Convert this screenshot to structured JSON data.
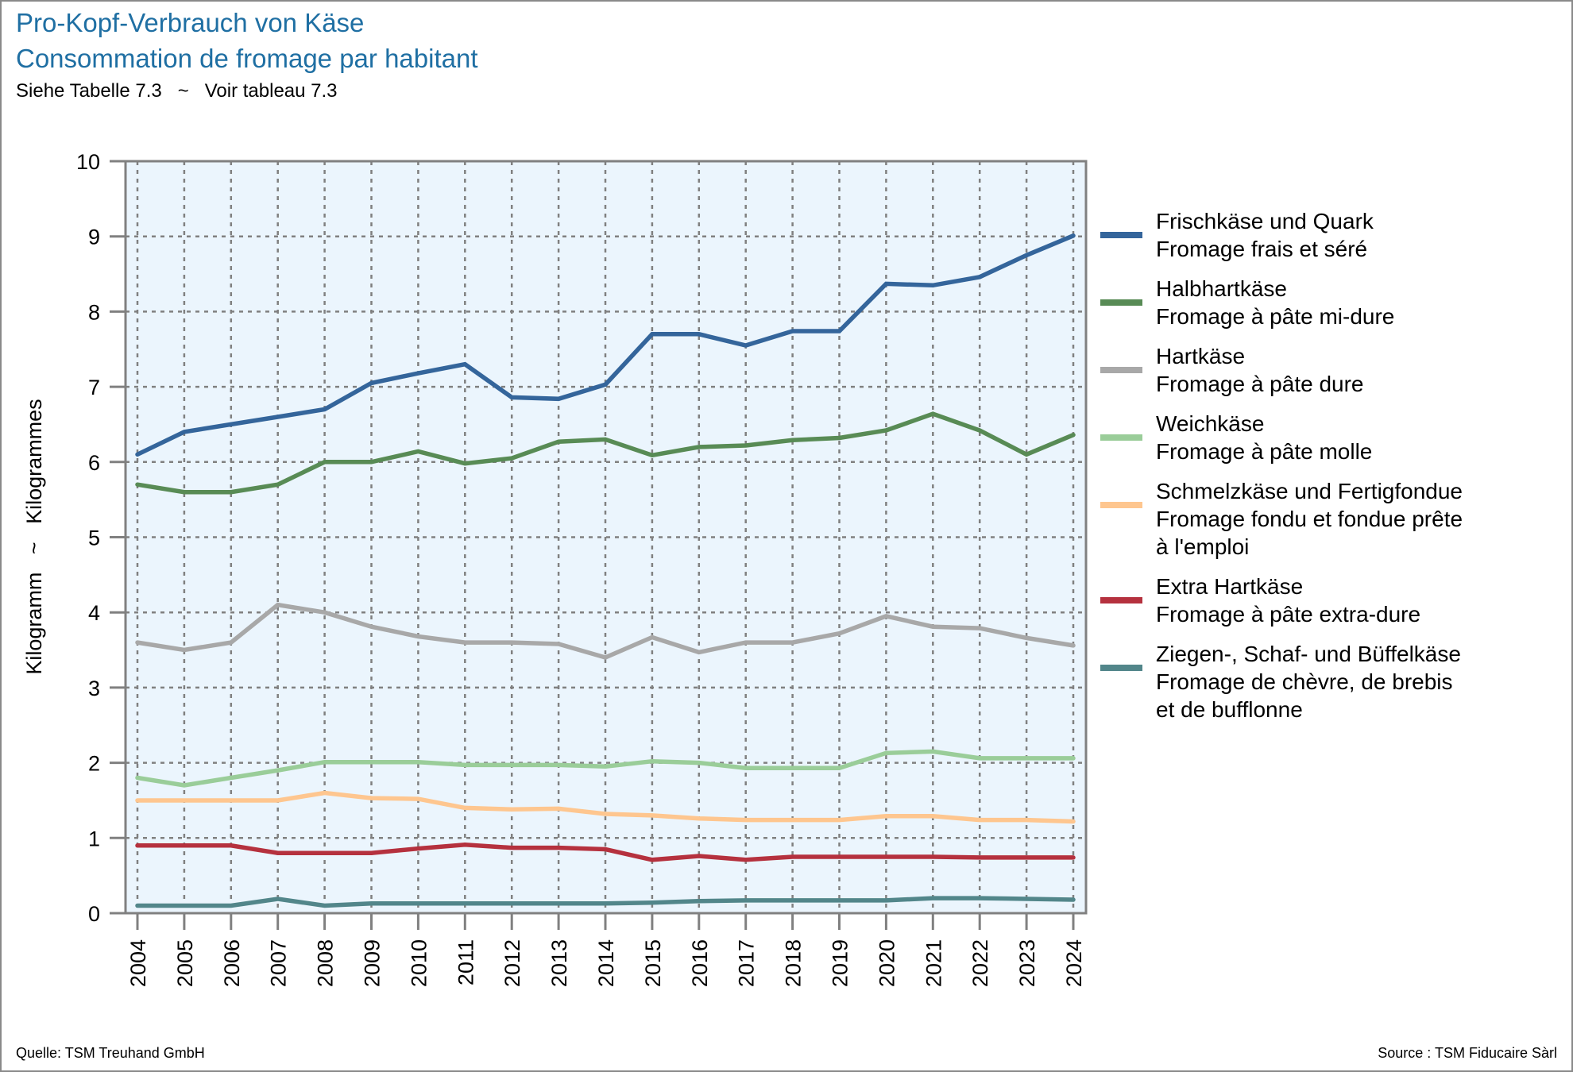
{
  "header": {
    "title_de": "Pro-Kopf-Verbrauch von Käse",
    "title_fr": "Consommation de fromage par habitant",
    "subtitle": "Siehe Tabelle 7.3   ~   Voir tableau 7.3"
  },
  "footer": {
    "source_de": "Quelle: TSM Treuhand GmbH",
    "source_fr": "Source : TSM Fiducaire Sàrl"
  },
  "colors": {
    "title": "#1f6fa3",
    "plot_background": "#ebf5fd",
    "axis": "#808080",
    "grid": "#808080"
  },
  "chart_data": {
    "type": "line",
    "title": "Pro-Kopf-Verbrauch von Käse / Consommation de fromage par habitant",
    "xlabel": "",
    "ylabel": "Kilogramm   ~   Kilogrammes",
    "ylim": [
      0,
      10
    ],
    "yticks": [
      0,
      1,
      2,
      3,
      4,
      5,
      6,
      7,
      8,
      9,
      10
    ],
    "grid": true,
    "legend_position": "right",
    "x": [
      2004,
      2005,
      2006,
      2007,
      2008,
      2009,
      2010,
      2011,
      2012,
      2013,
      2014,
      2015,
      2016,
      2017,
      2018,
      2019,
      2020,
      2021,
      2022,
      2023,
      2024
    ],
    "series": [
      {
        "name": "Frischkäse und Quark",
        "name_fr": "Fromage frais et séré",
        "legend_lines": [
          "Frischkäse und Quark",
          "Fromage frais et séré"
        ],
        "color": "#34659b",
        "values": [
          6.1,
          6.4,
          6.5,
          6.6,
          6.7,
          7.05,
          7.18,
          7.3,
          6.86,
          6.84,
          7.03,
          7.7,
          7.7,
          7.55,
          7.74,
          7.74,
          8.37,
          8.35,
          8.46,
          8.75,
          9.01
        ]
      },
      {
        "name": "Halbhartkäse",
        "name_fr": "Fromage à pâte mi-dure",
        "legend_lines": [
          "Halbhartkäse",
          "Fromage à pâte mi-dure"
        ],
        "color": "#588b55",
        "values": [
          5.7,
          5.6,
          5.6,
          5.7,
          6.0,
          6.0,
          6.14,
          5.98,
          6.05,
          6.27,
          6.3,
          6.09,
          6.2,
          6.22,
          6.29,
          6.32,
          6.42,
          6.64,
          6.42,
          6.1,
          6.36
        ]
      },
      {
        "name": "Hartkäse",
        "name_fr": "Fromage à pâte dure",
        "legend_lines": [
          "Hartkäse",
          "Fromage à pâte dure"
        ],
        "color": "#a8a8a8",
        "values": [
          3.6,
          3.5,
          3.6,
          4.1,
          4.0,
          3.81,
          3.68,
          3.6,
          3.6,
          3.58,
          3.4,
          3.67,
          3.47,
          3.6,
          3.6,
          3.72,
          3.95,
          3.81,
          3.79,
          3.66,
          3.56
        ]
      },
      {
        "name": "Weichkäse",
        "name_fr": "Fromage à pâte molle",
        "legend_lines": [
          "Weichkäse",
          "Fromage à pâte molle"
        ],
        "color": "#9acd99",
        "values": [
          1.8,
          1.7,
          1.8,
          1.9,
          2.01,
          2.01,
          2.01,
          1.97,
          1.97,
          1.97,
          1.95,
          2.02,
          2.0,
          1.93,
          1.93,
          1.93,
          2.13,
          2.15,
          2.06,
          2.06,
          2.06
        ]
      },
      {
        "name": "Schmelzkäse und Fertigfondue",
        "name_fr": "Fromage fondu et fondue prête à l'emploi",
        "legend_lines": [
          "Schmelzkäse und Fertigfondue",
          "Fromage fondu et fondue prête",
          "  à l'emploi"
        ],
        "color": "#fec68f",
        "values": [
          1.5,
          1.5,
          1.5,
          1.5,
          1.6,
          1.53,
          1.52,
          1.4,
          1.38,
          1.39,
          1.32,
          1.3,
          1.26,
          1.24,
          1.24,
          1.24,
          1.29,
          1.29,
          1.24,
          1.24,
          1.22
        ]
      },
      {
        "name": "Extra Hartkäse",
        "name_fr": "Fromage à pâte extra-dure",
        "legend_lines": [
          "Extra Hartkäse",
          "Fromage à pâte extra-dure"
        ],
        "color": "#b5313e",
        "values": [
          0.9,
          0.9,
          0.9,
          0.8,
          0.8,
          0.8,
          0.86,
          0.91,
          0.87,
          0.87,
          0.85,
          0.71,
          0.76,
          0.71,
          0.75,
          0.75,
          0.75,
          0.75,
          0.74,
          0.74,
          0.74
        ]
      },
      {
        "name": "Ziegen-, Schaf- und Büffelkäse",
        "name_fr": "Fromage de chèvre, de brebis et de bufflonne",
        "legend_lines": [
          "Ziegen-, Schaf- und Büffelkäse",
          "Fromage de chèvre, de brebis",
          "  et de bufflonne"
        ],
        "color": "#52868a",
        "values": [
          0.1,
          0.1,
          0.1,
          0.19,
          0.1,
          0.13,
          0.13,
          0.13,
          0.13,
          0.13,
          0.13,
          0.14,
          0.16,
          0.17,
          0.17,
          0.17,
          0.17,
          0.2,
          0.2,
          0.19,
          0.18
        ]
      }
    ]
  }
}
